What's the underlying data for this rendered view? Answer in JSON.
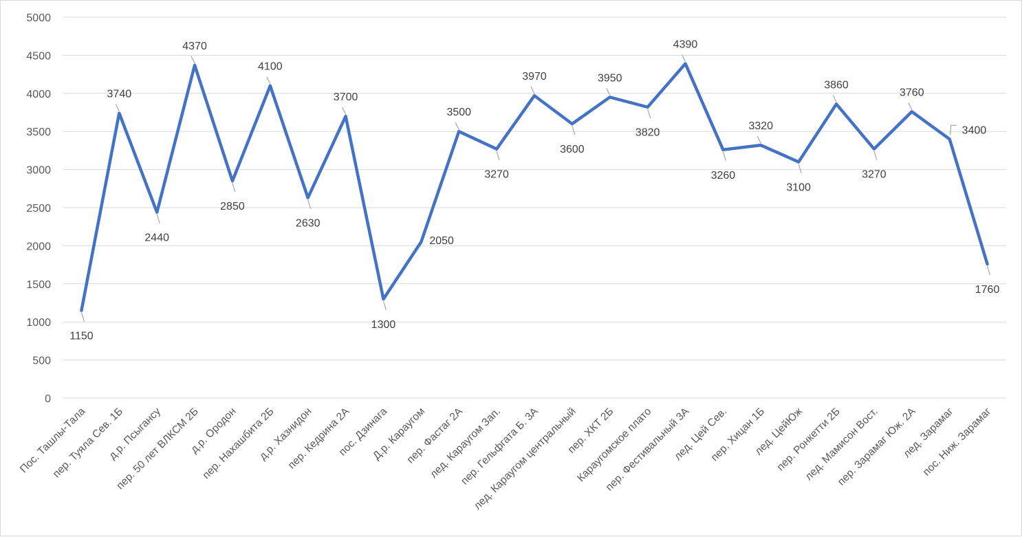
{
  "chart_data": {
    "type": "line",
    "title": "",
    "xlabel": "",
    "ylabel": "",
    "ylim": [
      0,
      5000
    ],
    "yticks": [
      0,
      500,
      1000,
      1500,
      2000,
      2500,
      3000,
      3500,
      4000,
      4500,
      5000
    ],
    "grid": true,
    "legend": "none",
    "line_color": "#4472c4",
    "grid_color": "#d9d9d9",
    "categories": [
      "Пос. Ташлы-Тала",
      "пер. Туяла Сев. 1Б",
      "д.р. Псыгансу",
      "пер. 50 лет ВЛКСМ 2Б",
      "д.р. Ородон",
      "пер. Нахашбита 2Б",
      "д.р. Хазнидон",
      "пер. Кедрина 2А",
      "пос. Дзинага",
      "Д.р. Караугом",
      "пер. Фастаг 2А",
      "лед. Караугом Зап.",
      "пер. Гельфгата Б. 3А",
      "лед. Караугом центральный",
      "пер. ХКТ 2Б",
      "Караугомское плато",
      "пер. Фестивальный 3А",
      "лед. Цей Сев.",
      "пер. Хицан 1Б",
      "лед. ЦейЮж",
      "пер. Ронкетти 2Б",
      "лед. Мамисон Вост.",
      "пер. Зарамаг Юж. 2А",
      "лед.  Зарамаг",
      "пос. Ниж. Зарамаг"
    ],
    "series": [
      {
        "values": [
          1150,
          3740,
          2440,
          4370,
          2850,
          4100,
          2630,
          3700,
          1300,
          2050,
          3500,
          3270,
          3970,
          3600,
          3950,
          3820,
          4390,
          3260,
          3320,
          3100,
          3860,
          3270,
          3760,
          3400,
          1760
        ],
        "labels": [
          "1150",
          "3740",
          "2440",
          "4370",
          "2850",
          "4100",
          "2630",
          "3700",
          "1300",
          "2050",
          "3500",
          "3270",
          "3970",
          "3600",
          "3950",
          "3820",
          "4390",
          "3260",
          "3320",
          "3100",
          "3860",
          "3270",
          "3760",
          "3400",
          "1760"
        ]
      }
    ]
  }
}
